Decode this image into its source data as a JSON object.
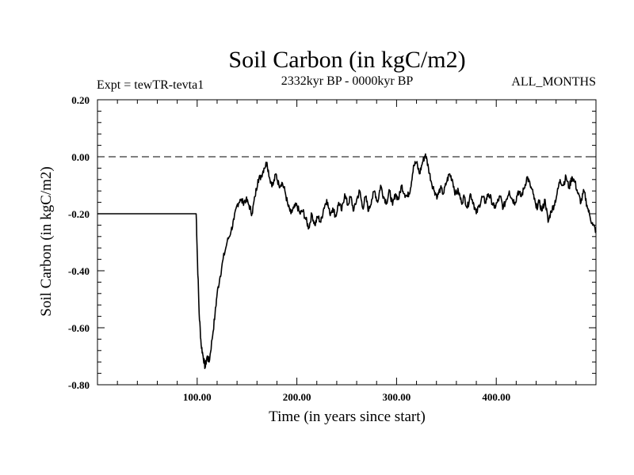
{
  "chart_data": {
    "type": "line",
    "title": "Soil Carbon (in kgC/m2)",
    "subtitle": "2332kyr BP - 0000kyr BP",
    "experiment_label": "Expt = tewTR-tevta1",
    "season_label": "ALL_MONTHS",
    "xlabel": "Time (in years since start)",
    "ylabel": "Soil Carbon (in kgC/m2)",
    "xlim": [
      0,
      500
    ],
    "ylim": [
      -0.8,
      0.2
    ],
    "x_tick_labels": [
      {
        "value": 100,
        "label": "100.00"
      },
      {
        "value": 200,
        "label": "200.00"
      },
      {
        "value": 300,
        "label": "300.00"
      },
      {
        "value": 400,
        "label": "400.00"
      }
    ],
    "y_tick_labels": [
      {
        "value": 0.2,
        "label": "0.20"
      },
      {
        "value": 0.0,
        "label": "0.00"
      },
      {
        "value": -0.2,
        "label": "-0.20"
      },
      {
        "value": -0.4,
        "label": "-0.40"
      },
      {
        "value": -0.6,
        "label": "-0.60"
      },
      {
        "value": -0.8,
        "label": "-0.80"
      }
    ],
    "reference_line": 0.0,
    "series": [
      {
        "name": "Soil Carbon",
        "color": "#000000",
        "x": [
          0,
          50,
          99,
          100,
          102,
          104,
          106,
          108,
          110,
          112,
          115,
          118,
          120,
          123,
          126,
          130,
          134,
          137,
          140,
          143,
          146,
          149,
          152,
          155,
          158,
          161,
          164,
          167,
          170,
          173,
          176,
          179,
          182,
          185,
          188,
          191,
          194,
          197,
          200,
          203,
          206,
          209,
          212,
          215,
          218,
          221,
          224,
          227,
          230,
          233,
          236,
          239,
          242,
          245,
          248,
          251,
          254,
          257,
          260,
          263,
          266,
          269,
          272,
          275,
          278,
          281,
          284,
          287,
          290,
          293,
          296,
          299,
          302,
          305,
          308,
          311,
          314,
          317,
          320,
          323,
          326,
          329,
          332,
          335,
          338,
          341,
          344,
          347,
          350,
          353,
          356,
          359,
          362,
          365,
          368,
          371,
          374,
          377,
          380,
          383,
          386,
          389,
          392,
          395,
          398,
          401,
          404,
          407,
          410,
          413,
          416,
          419,
          422,
          425,
          428,
          431,
          434,
          437,
          440,
          443,
          446,
          449,
          452,
          455,
          458,
          461,
          464,
          467,
          470,
          473,
          476,
          479,
          482,
          485,
          488,
          491,
          494,
          497,
          500
        ],
        "y": [
          -0.2,
          -0.2,
          -0.2,
          -0.33,
          -0.55,
          -0.66,
          -0.7,
          -0.74,
          -0.7,
          -0.72,
          -0.64,
          -0.55,
          -0.48,
          -0.42,
          -0.36,
          -0.3,
          -0.26,
          -0.22,
          -0.17,
          -0.15,
          -0.16,
          -0.15,
          -0.17,
          -0.2,
          -0.14,
          -0.08,
          -0.07,
          -0.04,
          -0.02,
          -0.08,
          -0.1,
          -0.06,
          -0.1,
          -0.09,
          -0.12,
          -0.17,
          -0.2,
          -0.18,
          -0.17,
          -0.2,
          -0.19,
          -0.22,
          -0.25,
          -0.2,
          -0.24,
          -0.21,
          -0.23,
          -0.18,
          -0.15,
          -0.2,
          -0.18,
          -0.21,
          -0.16,
          -0.19,
          -0.13,
          -0.17,
          -0.14,
          -0.19,
          -0.15,
          -0.12,
          -0.18,
          -0.14,
          -0.19,
          -0.15,
          -0.12,
          -0.16,
          -0.1,
          -0.14,
          -0.16,
          -0.12,
          -0.17,
          -0.13,
          -0.15,
          -0.1,
          -0.13,
          -0.14,
          -0.11,
          -0.03,
          -0.02,
          -0.06,
          -0.02,
          0.01,
          -0.04,
          -0.09,
          -0.12,
          -0.14,
          -0.11,
          -0.13,
          -0.09,
          -0.06,
          -0.08,
          -0.13,
          -0.12,
          -0.16,
          -0.14,
          -0.18,
          -0.13,
          -0.16,
          -0.2,
          -0.17,
          -0.14,
          -0.16,
          -0.13,
          -0.15,
          -0.18,
          -0.16,
          -0.14,
          -0.18,
          -0.15,
          -0.12,
          -0.15,
          -0.16,
          -0.12,
          -0.14,
          -0.11,
          -0.07,
          -0.1,
          -0.13,
          -0.18,
          -0.16,
          -0.19,
          -0.15,
          -0.23,
          -0.19,
          -0.17,
          -0.13,
          -0.08,
          -0.1,
          -0.07,
          -0.11,
          -0.07,
          -0.09,
          -0.13,
          -0.16,
          -0.12,
          -0.17,
          -0.21,
          -0.24,
          -0.26
        ]
      }
    ]
  }
}
